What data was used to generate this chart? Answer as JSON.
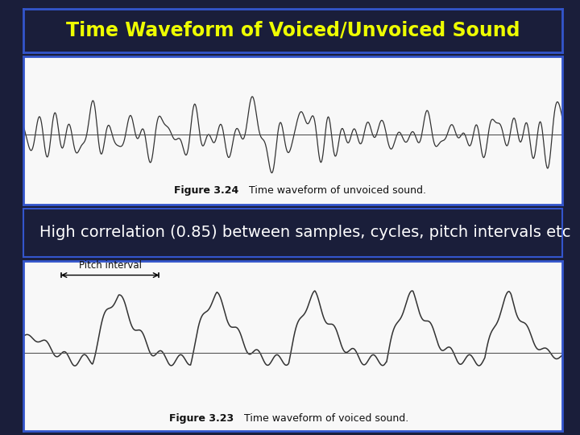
{
  "title": "Time Waveform of Voiced/Unvoiced Sound",
  "title_color": "#EEFF00",
  "title_fontsize": 17,
  "background_color": "#1a1e3a",
  "panel_bg": "#f8f8f8",
  "middle_text": "High correlation (0.85) between samples, cycles, pitch intervals etc",
  "middle_text_color": "#ffffff",
  "middle_text_fontsize": 14,
  "fig1_caption_bold": "Figure 3.24",
  "fig1_caption_rest": "    Time waveform of unvoiced sound.",
  "fig2_caption_bold": "Figure 3.23",
  "fig2_caption_rest": "    Time waveform of voiced sound.",
  "pitch_label": "Pitch interval",
  "border_color": "#3355cc",
  "caption_fontsize": 9
}
